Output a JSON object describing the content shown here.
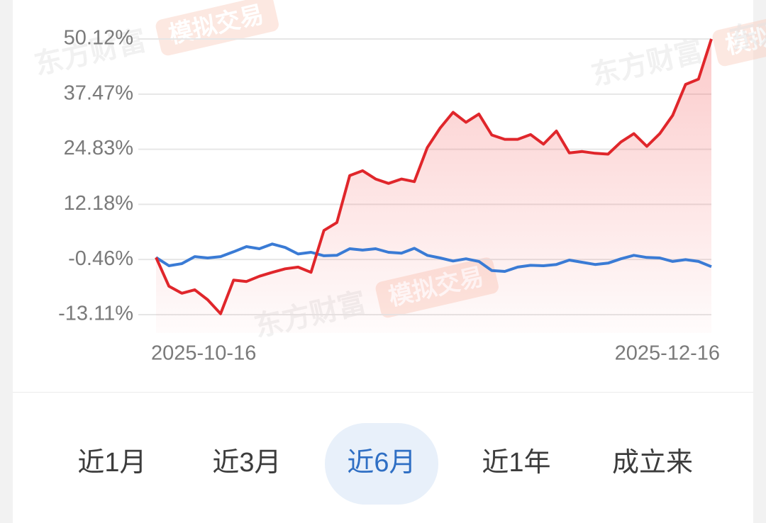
{
  "chart_data": {
    "type": "line",
    "categories": [
      "2025-10-16",
      null,
      null,
      null,
      null,
      null,
      null,
      null,
      null,
      null,
      null,
      null,
      null,
      null,
      null,
      null,
      null,
      null,
      null,
      null,
      null,
      null,
      null,
      null,
      null,
      null,
      null,
      null,
      null,
      null,
      null,
      null,
      null,
      null,
      null,
      null,
      null,
      null,
      null,
      null,
      null,
      null,
      null,
      "2025-12-16"
    ],
    "series": [
      {
        "color": "#e0262b",
        "values": [
          0,
          -6.6,
          -8.2,
          -7.4,
          -9.7,
          -12.9,
          -5.2,
          -5.5,
          -4.3,
          -3.4,
          -2.6,
          -2.2,
          -3.4,
          6.2,
          8.0,
          18.8,
          19.9,
          18.0,
          17.0,
          18.0,
          17.4,
          25.2,
          29.7,
          33.3,
          31.0,
          32.9,
          28.1,
          27.1,
          27.1,
          28.2,
          26.0,
          29.0,
          24.0,
          24.3,
          23.9,
          23.7,
          26.5,
          28.4,
          25.5,
          28.4,
          32.6,
          39.7,
          40.9,
          50.12
        ]
      },
      {
        "color": "#3a7bd5",
        "values": [
          0,
          -1.9,
          -1.4,
          0.2,
          -0.1,
          0.2,
          1.3,
          2.5,
          2.0,
          3.1,
          2.3,
          0.8,
          1.2,
          0.4,
          0.5,
          2.0,
          1.7,
          2.0,
          1.2,
          1.0,
          2.1,
          0.5,
          -0.1,
          -0.8,
          -0.3,
          -0.9,
          -3.0,
          -3.2,
          -2.2,
          -1.8,
          -1.9,
          -1.6,
          -0.6,
          -1.1,
          -1.6,
          -1.3,
          -0.3,
          0.5,
          0.0,
          -0.1,
          -0.9,
          -0.5,
          -0.9,
          -2.1
        ]
      }
    ],
    "ylim": [
      -13.11,
      50.12
    ],
    "yticks": [
      {
        "value": 50.12,
        "label": "50.12%"
      },
      {
        "value": 37.47,
        "label": "37.47%"
      },
      {
        "value": 24.83,
        "label": "24.83%"
      },
      {
        "value": 12.18,
        "label": "12.18%"
      },
      {
        "value": -0.46,
        "label": "-0.46%"
      },
      {
        "value": -13.11,
        "label": "-13.11%"
      }
    ],
    "grid": true,
    "area_under_first_series": true
  },
  "range_buttons": {
    "options": [
      "近1月",
      "近3月",
      "近6月",
      "近1年",
      "成立来"
    ],
    "selected": 2
  },
  "watermark": {
    "brand": "东方财富",
    "tag": "模拟交易"
  }
}
